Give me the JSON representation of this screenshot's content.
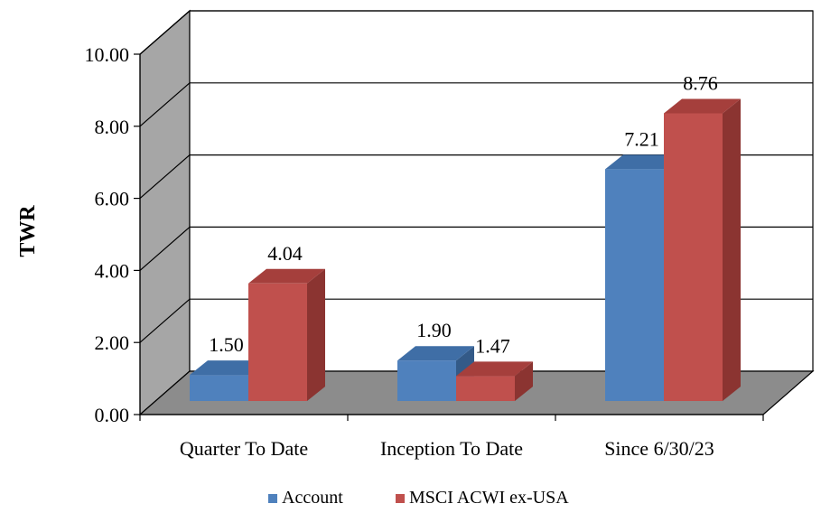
{
  "chart_data": {
    "type": "bar",
    "style": "3d-clustered-column",
    "categories": [
      "Quarter To Date",
      "Inception To Date",
      "Since 6/30/23"
    ],
    "series": [
      {
        "name": "Account",
        "values": [
          1.5,
          1.9,
          7.21
        ],
        "labels": [
          "1.50",
          "1.90",
          "7.21"
        ]
      },
      {
        "name": "MSCI ACWI ex-USA",
        "values": [
          4.04,
          1.47,
          8.76
        ],
        "labels": [
          "4.04",
          "1.47",
          "8.76"
        ]
      }
    ],
    "xlabel": "",
    "ylabel": "TWR",
    "ylim": [
      0,
      10
    ],
    "yticks": [
      "0.00",
      "2.00",
      "4.00",
      "6.00",
      "8.00",
      "10.00"
    ],
    "grid": true,
    "legend_position": "bottom",
    "colors": {
      "series": [
        "#4f81bd",
        "#c0504d"
      ],
      "series_top": [
        "#3f6ea6",
        "#a53f3c"
      ],
      "series_side": [
        "#335a88",
        "#8b3431"
      ],
      "back_wall": "#ffffff",
      "side_wall": "#a6a6a6",
      "floor": "#8c8c8c"
    }
  }
}
